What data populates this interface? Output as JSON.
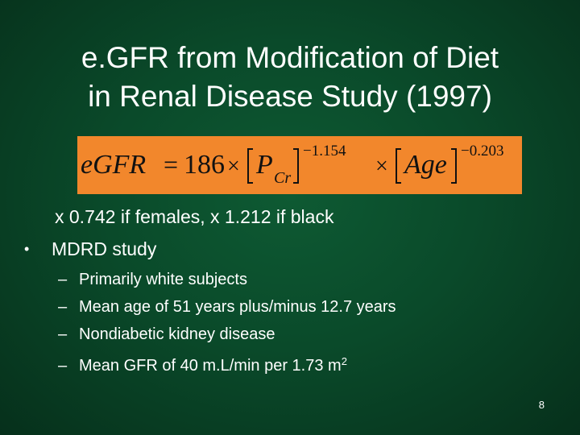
{
  "title": {
    "line1": "e.GFR from Modification of Diet",
    "line2": "in Renal Disease Study (1997)"
  },
  "formula": {
    "lhs": "eGFR",
    "equals": "=",
    "coefficient": "186",
    "times": "×",
    "pcr_base": "P",
    "pcr_subscript": "Cr",
    "pcr_exponent": "−1.154",
    "age_base": "Age",
    "age_exponent": "−0.203",
    "background_color": "#f2872c"
  },
  "note": "x 0.742 if females, x 1.212 if black",
  "bullet": {
    "symbol": "•",
    "text": "MDRD study"
  },
  "sub_items": [
    {
      "dash": "–",
      "text": "Primarily white subjects",
      "sup": ""
    },
    {
      "dash": "–",
      "text": "Mean age of 51 years plus/minus 12.7 years",
      "sup": ""
    },
    {
      "dash": "–",
      "text": "Nondiabetic kidney disease",
      "sup": ""
    },
    {
      "dash": "–",
      "text": "Mean GFR of 40 m.L/min per 1.73 m",
      "sup": "2"
    }
  ],
  "page_number": "8"
}
